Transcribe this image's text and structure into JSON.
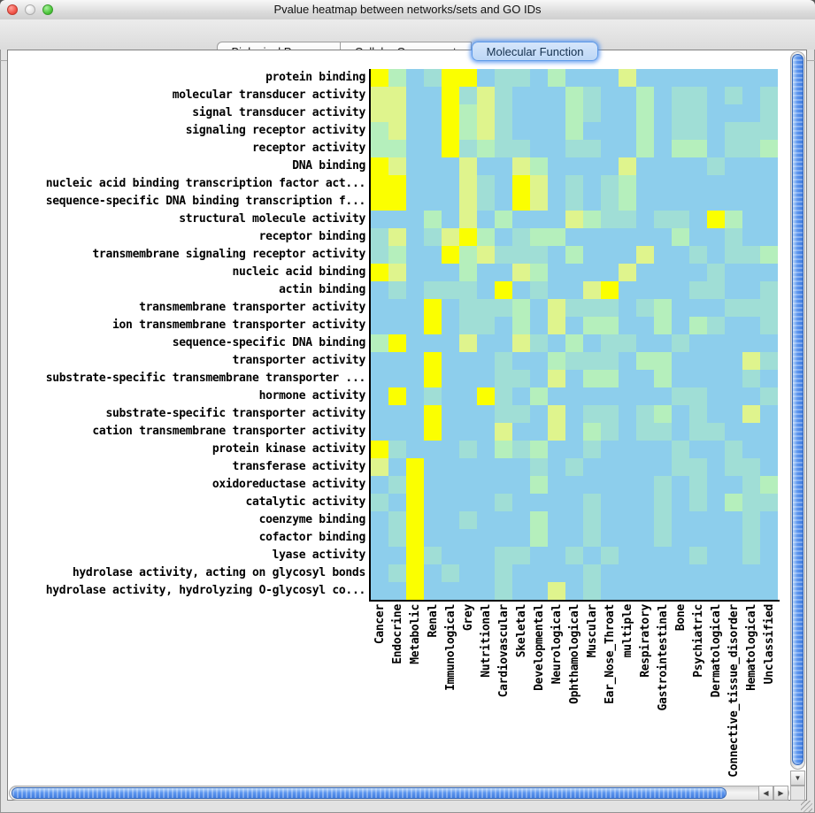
{
  "window": {
    "title": "Pvalue heatmap between networks/sets and GO IDs"
  },
  "tabs": [
    {
      "label": "Biological Process",
      "selected": false
    },
    {
      "label": "Cellular Component",
      "selected": false
    },
    {
      "label": "Molecular Function",
      "selected": true
    }
  ],
  "scrollbars": {
    "down_arrow": "▼",
    "left_arrow": "◀",
    "right_arrow": "▶"
  },
  "chart_data": {
    "type": "heatmap",
    "title": "Pvalue heatmap between networks/sets and GO IDs",
    "rows": [
      "protein binding",
      "molecular transducer activity",
      "signal transducer activity",
      "signaling receptor activity",
      "receptor activity",
      "DNA binding",
      "nucleic acid binding transcription factor act...",
      "sequence-specific DNA binding transcription f...",
      "structural molecule activity",
      "receptor binding",
      "transmembrane signaling receptor activity",
      "nucleic acid binding",
      "actin binding",
      "transmembrane transporter activity",
      "ion transmembrane transporter activity",
      "sequence-specific DNA binding",
      "transporter activity",
      "substrate-specific transmembrane transporter ...",
      "hormone activity",
      "substrate-specific transporter activity",
      "cation transmembrane transporter activity",
      "protein kinase activity",
      "transferase activity",
      "oxidoreductase activity",
      "catalytic activity",
      "coenzyme binding",
      "cofactor binding",
      "lyase activity",
      "hydrolase activity, acting on glycosyl bonds",
      "hydrolase activity, hydrolyzing O-glycosyl co..."
    ],
    "columns": [
      "Cancer",
      "Endocrine",
      "Metabolic",
      "Renal",
      "Immunological",
      "Grey",
      "Nutritional",
      "Cardiovascular",
      "Skeletal",
      "Developmental",
      "Neurological",
      "Ophthamological",
      "Muscular",
      "Ear_Nose_Throat",
      "multiple",
      "Respiratory",
      "Gastrointestinal",
      "Bone",
      "Psychiatric",
      "Dermatological",
      "Connective_tissue_disorder",
      "Hematological",
      "Unclassified"
    ],
    "palette": [
      "#8DCEEC",
      "#A0DED6",
      "#B5EFBC",
      "#DFF48D",
      "#FBFF00"
    ],
    "palette_levels": [
      "0 blue",
      "1 teal",
      "2 pale-green",
      "3 lime",
      "4 yellow"
    ],
    "grid": [
      "42014401102000300000000",
      "33004131000210020110101",
      "33004231000210020110001",
      "23004231000200020110111",
      "22004121100110020220112",
      "43000300320000300001000",
      "44000310430101200000000",
      "44000310430101200000000",
      "00020302000321101104200",
      "13013420122000000200100",
      "12004231110200030010112",
      "43000200320000300001000",
      "01011104010034000011001",
      "00040111203111012000111",
      "00040110203022002021001",
      "24000300310201100100000",
      "00040001002111022000031",
      "00040001103022002000010",
      "04010041020000000110001",
      "00040001103011012010030",
      "00040003003021011011000",
      "41000102120010000100100",
      "30400000010100000110110",
      "01400000020000001010012",
      "10400001000010001010211",
      "01400100020010001000010",
      "01400000020010001000010",
      "00410001100101000010010",
      "01401001000010000000000",
      "00400001003010000000000"
    ]
  }
}
